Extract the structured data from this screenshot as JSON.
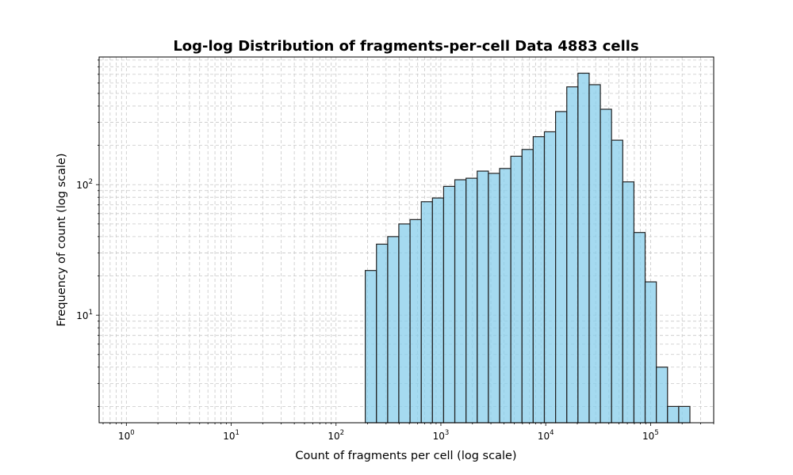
{
  "chart_data": {
    "type": "bar",
    "title": "Log-log Distribution of fragments-per-cell Data 4883 cells",
    "xlabel": "Count of fragments per cell (log scale)",
    "ylabel": "Frequency of count (log scale)",
    "xscale": "log",
    "yscale": "log",
    "xlim": [
      0.55,
      400000
    ],
    "ylim": [
      1.5,
      950
    ],
    "xticks": [
      {
        "value": 1,
        "base": "10",
        "exp": "0"
      },
      {
        "value": 10,
        "base": "10",
        "exp": "1"
      },
      {
        "value": 100,
        "base": "10",
        "exp": "2"
      },
      {
        "value": 1000,
        "base": "10",
        "exp": "3"
      },
      {
        "value": 10000,
        "base": "10",
        "exp": "4"
      },
      {
        "value": 100000,
        "base": "10",
        "exp": "5"
      }
    ],
    "yticks": [
      {
        "value": 10,
        "base": "10",
        "exp": "1"
      },
      {
        "value": 100,
        "base": "10",
        "exp": "2"
      }
    ],
    "grid": true,
    "bar_color": "#87CEEB",
    "edge_color": "#222222",
    "bin_edges": [
      190,
      243,
      311,
      397,
      508,
      650,
      831,
      1062,
      1358,
      1737,
      2221,
      2840,
      3632,
      4644,
      5938,
      7593,
      9709,
      12415,
      15875,
      20299,
      25957,
      33191,
      42442,
      54272,
      69398,
      88740,
      113472,
      145098,
      185538,
      237250
    ],
    "counts": [
      22,
      35,
      40,
      50,
      54,
      74,
      79,
      97,
      109,
      112,
      127,
      122,
      133,
      165,
      186,
      233,
      254,
      363,
      561,
      714,
      583,
      378,
      219,
      105,
      43,
      18,
      4,
      2,
      2
    ]
  }
}
